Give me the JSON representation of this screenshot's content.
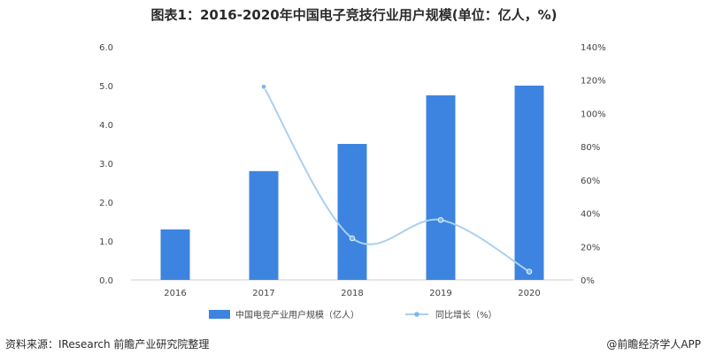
{
  "title": "图表1：2016-2020年中国电子竞技行业用户规模(单位：亿人，%)",
  "footer": {
    "source": "资料来源：IResearch 前瞻产业研究院整理",
    "brand": "@前瞻经济学人APP"
  },
  "colors": {
    "bar": "#3d84e0",
    "line": "#a9d0f0",
    "marker": "#7fb8e8",
    "axis": "#cccccc"
  },
  "chart_data": {
    "type": "bar",
    "categories": [
      "2016",
      "2017",
      "2018",
      "2019",
      "2020"
    ],
    "series": [
      {
        "name": "中国电竞产业用户规模（亿人）",
        "type": "bar",
        "axis": "left",
        "values": [
          1.3,
          2.8,
          3.5,
          4.75,
          5.0
        ]
      },
      {
        "name": "同比增长（%）",
        "type": "line",
        "axis": "right",
        "values": [
          null,
          116,
          25,
          36,
          5
        ]
      }
    ],
    "ylim_left": [
      0,
      6
    ],
    "yticks_left": [
      "0.0",
      "1.0",
      "2.0",
      "3.0",
      "4.0",
      "5.0",
      "6.0"
    ],
    "ylim_right": [
      0,
      140
    ],
    "yticks_right": [
      "0%",
      "20%",
      "40%",
      "60%",
      "80%",
      "100%",
      "120%",
      "140%"
    ],
    "grid": false,
    "legend": "bottom"
  }
}
